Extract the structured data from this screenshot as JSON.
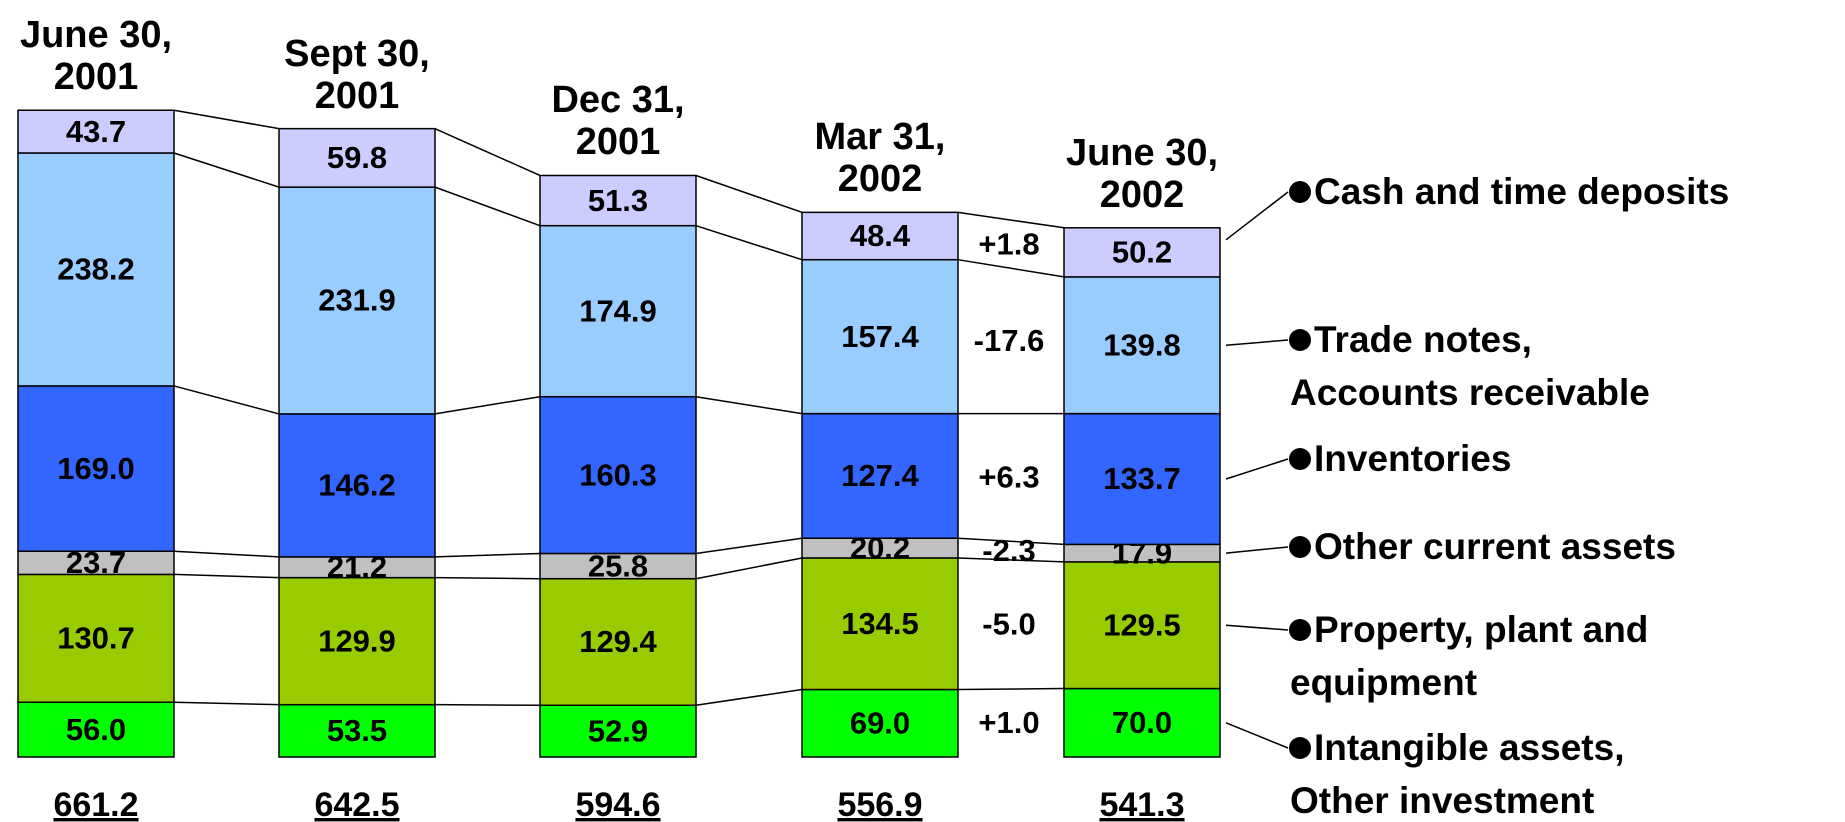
{
  "chart_data": {
    "type": "stacked_bar",
    "categories": [
      "June 30,\n2001",
      "Sept 30,\n2001",
      "Dec 31,\n2001",
      "Mar 31,\n2002",
      "June 30,\n2002"
    ],
    "series": [
      {
        "name": "Intangible assets,\nOther investment",
        "color": "#00ff00",
        "values": [
          56.0,
          53.5,
          52.9,
          69.0,
          70.0
        ],
        "value_labels": [
          "56.0",
          "53.5",
          "52.9",
          "69.0",
          "70.0"
        ]
      },
      {
        "name": "Property, plant and\nequipment",
        "color": "#99cc00",
        "values": [
          130.7,
          129.9,
          129.4,
          134.5,
          129.5
        ],
        "value_labels": [
          "130.7",
          "129.9",
          "129.4",
          "134.5",
          "129.5"
        ]
      },
      {
        "name": "Other current assets",
        "color": "#c0c0c0",
        "values": [
          23.7,
          21.2,
          25.8,
          20.2,
          17.9
        ],
        "value_labels": [
          "23.7",
          "21.2",
          "25.8",
          "20.2",
          "17.9"
        ]
      },
      {
        "name": "Inventories",
        "color": "#3366ff",
        "values": [
          169.0,
          146.2,
          160.3,
          127.4,
          133.7
        ],
        "value_labels": [
          "169.0",
          "146.2",
          "160.3",
          "127.4",
          "133.7"
        ]
      },
      {
        "name": "Trade notes,\nAccounts receivable",
        "color": "#99ccff",
        "values": [
          238.2,
          231.9,
          174.9,
          157.4,
          139.8
        ],
        "value_labels": [
          "238.2",
          "231.9",
          "174.9",
          "157.4",
          "139.8"
        ]
      },
      {
        "name": "Cash and time deposits",
        "color": "#ccccff",
        "values": [
          43.7,
          59.8,
          51.3,
          48.4,
          50.2
        ],
        "value_labels": [
          "43.7",
          "59.8",
          "51.3",
          "48.4",
          "50.2"
        ]
      }
    ],
    "totals": [
      661.2,
      642.5,
      594.6,
      556.9,
      541.3
    ],
    "changes": [
      1.0,
      -5.0,
      -2.3,
      6.3,
      -17.6,
      1.8
    ],
    "change_labels": [
      "+1.0",
      "-5.0",
      "-2.3",
      "+6.3",
      "-17.6",
      "+1.8"
    ]
  }
}
